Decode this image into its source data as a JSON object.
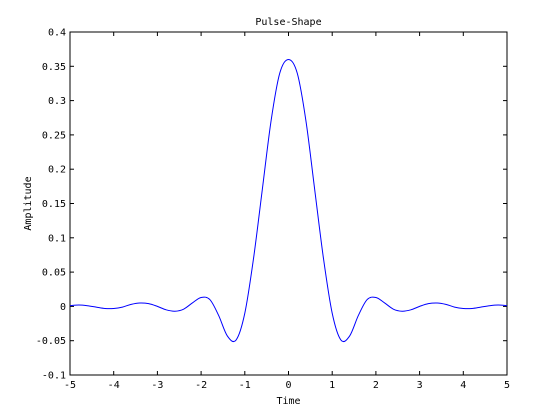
{
  "chart_data": {
    "type": "line",
    "title": "Pulse-Shape",
    "xlabel": "Time",
    "ylabel": "Amplitude",
    "xlim": [
      -5,
      5
    ],
    "ylim": [
      -0.1,
      0.4
    ],
    "xticks": [
      -5,
      -4,
      -3,
      -2,
      -1,
      0,
      1,
      2,
      3,
      4,
      5
    ],
    "xtick_labels": [
      "-5",
      "-4",
      "-3",
      "-2",
      "-1",
      "0",
      "1",
      "2",
      "3",
      "4",
      "5"
    ],
    "yticks": [
      -0.1,
      -0.05,
      0,
      0.05,
      0.1,
      0.15,
      0.2,
      0.25,
      0.3,
      0.35,
      0.4
    ],
    "ytick_labels": [
      "-0.1",
      "-0.05",
      "0",
      "0.05",
      "0.1",
      "0.15",
      "0.2",
      "0.25",
      "0.3",
      "0.35",
      "0.4"
    ],
    "grid": false,
    "legend": "none",
    "series_color": "#0000ff",
    "x": [
      -5.0,
      -4.8,
      -4.6,
      -4.4,
      -4.2,
      -4.0,
      -3.8,
      -3.6,
      -3.4,
      -3.2,
      -3.0,
      -2.8,
      -2.6,
      -2.4,
      -2.2,
      -2.0,
      -1.8,
      -1.6,
      -1.4,
      -1.2,
      -1.0,
      -0.8,
      -0.6,
      -0.4,
      -0.2,
      0.0,
      0.2,
      0.4,
      0.6,
      0.8,
      1.0,
      1.2,
      1.4,
      1.6,
      1.8,
      2.0,
      2.2,
      2.4,
      2.6,
      2.8,
      3.0,
      3.2,
      3.4,
      3.6,
      3.8,
      4.0,
      4.2,
      4.4,
      4.6,
      4.8,
      5.0
    ],
    "y": [
      0.001,
      0.002,
      0.001,
      -0.001,
      -0.003,
      -0.003,
      -0.001,
      0.003,
      0.005,
      0.004,
      0.0,
      -0.005,
      -0.007,
      -0.004,
      0.005,
      0.013,
      0.01,
      -0.013,
      -0.043,
      -0.049,
      -0.01,
      0.07,
      0.17,
      0.27,
      0.34,
      0.36,
      0.34,
      0.27,
      0.17,
      0.07,
      -0.01,
      -0.049,
      -0.043,
      -0.013,
      0.01,
      0.013,
      0.005,
      -0.004,
      -0.007,
      -0.005,
      0.0,
      0.004,
      0.005,
      0.003,
      -0.001,
      -0.003,
      -0.003,
      -0.001,
      0.001,
      0.002,
      0.001
    ]
  }
}
